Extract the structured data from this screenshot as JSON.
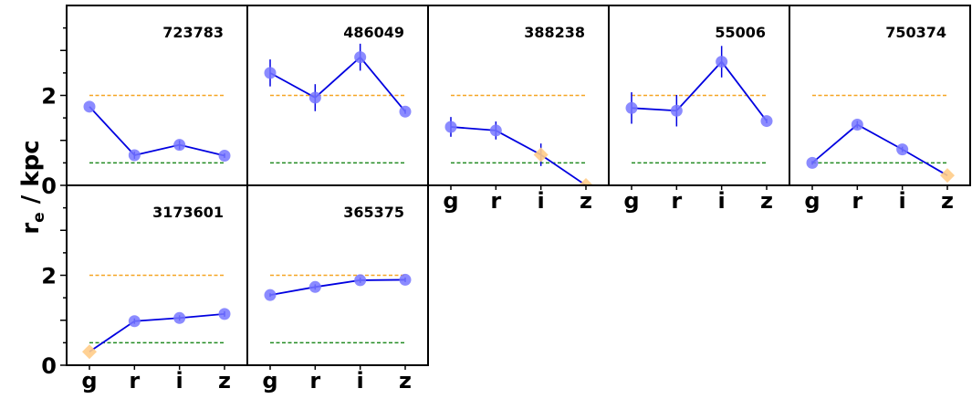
{
  "chart_data": {
    "type": "line",
    "ylabel": "r",
    "ylabel_subscript": "e",
    "ylabel_unit": " / kpc",
    "x": [
      "g",
      "r",
      "i",
      "z"
    ],
    "ylim": [
      0,
      4
    ],
    "yticks": [
      0,
      2
    ],
    "ref_lines": [
      {
        "y": 2.0,
        "color": "#f5a623",
        "style": "dashed"
      },
      {
        "y": 0.5,
        "color": "#228b22",
        "style": "dashed"
      }
    ],
    "colors": {
      "series": "#0000e0",
      "marker": "#7777ff",
      "rejected_marker": "#ffcc88"
    },
    "panels": [
      {
        "title": "723783",
        "values": [
          1.75,
          0.67,
          0.9,
          0.66
        ],
        "errors": [
          0,
          0.08,
          0.1,
          0.05
        ],
        "rejected": []
      },
      {
        "title": "486049",
        "values": [
          2.5,
          1.95,
          2.85,
          1.64
        ],
        "errors": [
          0.3,
          0.3,
          0.3,
          0.05
        ],
        "rejected": []
      },
      {
        "title": "388238",
        "values": [
          1.3,
          1.22,
          0.68,
          0.0
        ],
        "errors": [
          0.22,
          0.2,
          0.25,
          0
        ],
        "rejected": [
          2,
          3
        ]
      },
      {
        "title": "55006",
        "values": [
          1.72,
          1.66,
          2.75,
          1.43
        ],
        "errors": [
          0.35,
          0.35,
          0.35,
          0.05
        ],
        "rejected": []
      },
      {
        "title": "750374",
        "values": [
          0.5,
          1.35,
          0.8,
          0.22
        ],
        "errors": [
          0.04,
          0.08,
          0.06,
          0
        ],
        "rejected": [
          3
        ]
      },
      {
        "title": "3173601",
        "values": [
          0.3,
          0.98,
          1.05,
          1.14
        ],
        "errors": [
          0,
          0.06,
          0.06,
          0.06
        ],
        "rejected": [
          0
        ]
      },
      {
        "title": "365375",
        "values": [
          1.56,
          1.74,
          1.89,
          1.9
        ],
        "errors": [
          0.04,
          0.06,
          0.06,
          0.05
        ],
        "rejected": []
      }
    ]
  }
}
